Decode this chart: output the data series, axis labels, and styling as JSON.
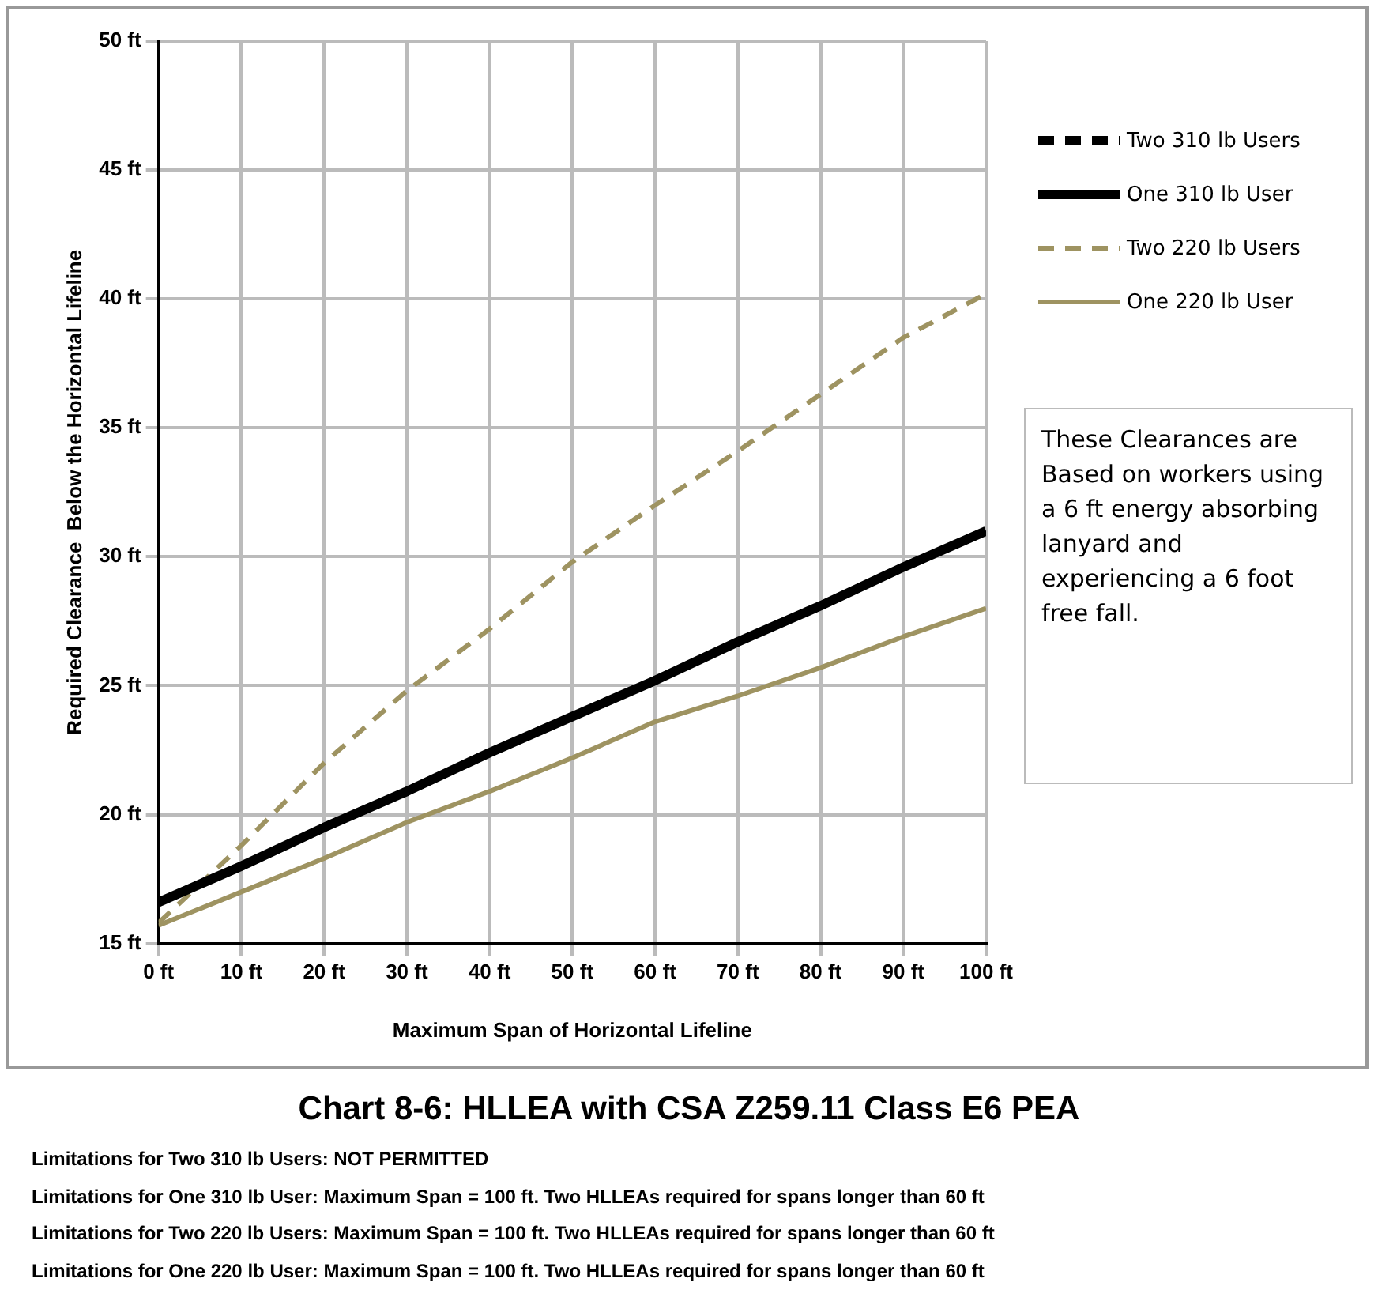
{
  "chart_data": {
    "type": "line",
    "title": "Chart 8-6: HLLEA with CSA Z259.11 Class E6 PEA",
    "xlabel": "Maximum Span of Horizontal Lifeline",
    "ylabel": "Required Clearance  Below the Horizontal Lifeline",
    "x": [
      0,
      10,
      20,
      30,
      40,
      50,
      60,
      70,
      80,
      90,
      100
    ],
    "series": [
      {
        "name": "Two 310 lb Users",
        "color": "#000000",
        "line_style": "dashed",
        "values": [
          null,
          null,
          null,
          null,
          null,
          null,
          null,
          null,
          null,
          null,
          null
        ]
      },
      {
        "name": "One 310 lb User",
        "color": "#000000",
        "line_style": "solid",
        "values": [
          16.6,
          18.0,
          19.5,
          20.9,
          22.4,
          23.8,
          25.2,
          26.7,
          28.1,
          29.6,
          31.0
        ]
      },
      {
        "name": "Two 220 lb Users",
        "color": "#9e9361",
        "line_style": "dashed",
        "values": [
          15.8,
          18.8,
          22.0,
          24.8,
          27.2,
          29.8,
          32.0,
          34.1,
          36.3,
          38.5,
          40.2
        ]
      },
      {
        "name": "One 220 lb User",
        "color": "#9e9361",
        "line_style": "solid",
        "values": [
          15.7,
          17.0,
          18.3,
          19.7,
          20.9,
          22.2,
          23.6,
          24.6,
          25.7,
          26.9,
          28.0
        ]
      }
    ],
    "xlim": [
      0,
      100
    ],
    "xticks": [
      {
        "value": 0,
        "label": "0 ft"
      },
      {
        "value": 10,
        "label": "10 ft"
      },
      {
        "value": 20,
        "label": "20 ft"
      },
      {
        "value": 30,
        "label": "30 ft"
      },
      {
        "value": 40,
        "label": "40 ft"
      },
      {
        "value": 50,
        "label": "50 ft"
      },
      {
        "value": 60,
        "label": "60 ft"
      },
      {
        "value": 70,
        "label": "70 ft"
      },
      {
        "value": 80,
        "label": "80 ft"
      },
      {
        "value": 90,
        "label": "90 ft"
      },
      {
        "value": 100,
        "label": "100 ft"
      }
    ],
    "ylim": [
      15,
      50
    ],
    "yticks": [
      {
        "value": 15,
        "label": "15 ft"
      },
      {
        "value": 20,
        "label": "20 ft"
      },
      {
        "value": 25,
        "label": "25 ft"
      },
      {
        "value": 30,
        "label": "30 ft"
      },
      {
        "value": 35,
        "label": "35 ft"
      },
      {
        "value": 40,
        "label": "40 ft"
      },
      {
        "value": 45,
        "label": "45 ft"
      },
      {
        "value": 50,
        "label": "50 ft"
      }
    ],
    "grid": true,
    "legend": "top right",
    "marker": "none",
    "annotations": [
      "These Clearances are Based on workers using a 6 ft energy absorbing lanyard and experiencing a 6 foot free fall.",
      "Limitations for Two 310 lb Users:  NOT PERMITTED",
      "Limitations for One 310 lb User:  Maximum Span = 100 ft. Two HLLEAs required for spans longer than 60 ft",
      "Limitations for Two 220 lb Users:  Maximum Span = 100 ft. Two HLLEAs required for spans longer than 60 ft",
      "Limitations for One 220 lb User:  Maximum Span = 100 ft. Two HLLEAs required for spans longer than 60 ft"
    ]
  }
}
